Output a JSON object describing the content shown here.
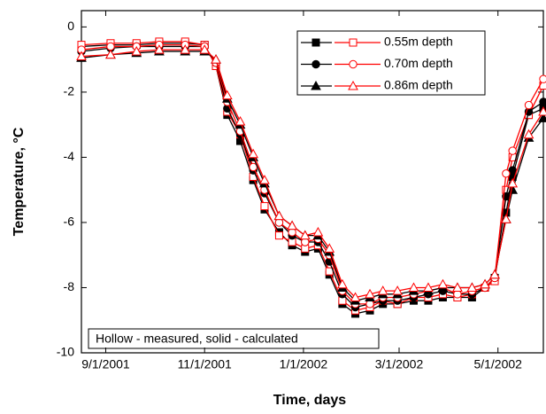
{
  "chart_data": {
    "type": "line",
    "y_label": "Temperature, °C",
    "x_label": "Time, days",
    "annotation": "Hollow - measured, solid - calculated",
    "measured_color": "#ff0000",
    "calculated_color": "#000000",
    "x": [
      "2001-08-17",
      "2001-09-04",
      "2001-09-20",
      "2001-10-04",
      "2001-10-20",
      "2001-11-01",
      "2001-11-08",
      "2001-11-15",
      "2001-11-23",
      "2001-12-01",
      "2001-12-08",
      "2001-12-17",
      "2001-12-25",
      "2002-01-02",
      "2002-01-10",
      "2002-01-17",
      "2002-01-25",
      "2002-02-02",
      "2002-02-11",
      "2002-02-19",
      "2002-02-28",
      "2002-03-10",
      "2002-03-19",
      "2002-03-28",
      "2002-04-06",
      "2002-04-15",
      "2002-04-23",
      "2002-04-29",
      "2002-05-06",
      "2002-05-10",
      "2002-05-20",
      "2002-05-29"
    ],
    "series": [
      {
        "name": "0.55m depth",
        "marker": "square",
        "values": [
          -0.55,
          -0.5,
          -0.5,
          -0.45,
          -0.45,
          -0.55,
          -1.2,
          -2.6,
          -3.3,
          -4.6,
          -5.5,
          -6.4,
          -6.6,
          -6.8,
          -6.7,
          -7.5,
          -8.4,
          -8.7,
          -8.6,
          -8.4,
          -8.5,
          -8.3,
          -8.3,
          -8.2,
          -8.3,
          -8.2,
          -8.0,
          -7.8,
          -5.0,
          -4.0,
          -2.7,
          -1.8
        ],
        "calculated": [
          -0.6,
          -0.55,
          -0.55,
          -0.5,
          -0.5,
          -0.55,
          -1.2,
          -2.7,
          -3.5,
          -4.7,
          -5.6,
          -6.3,
          -6.7,
          -6.9,
          -6.8,
          -7.6,
          -8.5,
          -8.8,
          -8.7,
          -8.5,
          -8.5,
          -8.4,
          -8.4,
          -8.3,
          -8.3,
          -8.3,
          -8.0,
          -7.7,
          -5.7,
          -4.6,
          -2.7,
          -2.5
        ]
      },
      {
        "name": "0.70m depth",
        "marker": "circle",
        "values": [
          -0.7,
          -0.6,
          -0.6,
          -0.55,
          -0.55,
          -0.6,
          -1.1,
          -2.3,
          -3.2,
          -4.3,
          -5.0,
          -6.0,
          -6.3,
          -6.6,
          -6.5,
          -7.0,
          -8.1,
          -8.5,
          -8.5,
          -8.3,
          -8.3,
          -8.2,
          -8.1,
          -8.0,
          -8.2,
          -8.1,
          -8.0,
          -7.7,
          -4.5,
          -3.8,
          -2.4,
          -1.6
        ],
        "calculated": [
          -0.75,
          -0.65,
          -0.6,
          -0.6,
          -0.6,
          -0.6,
          -1.1,
          -2.5,
          -3.3,
          -4.4,
          -5.1,
          -6.0,
          -6.4,
          -6.6,
          -6.6,
          -7.2,
          -8.2,
          -8.6,
          -8.5,
          -8.4,
          -8.4,
          -8.3,
          -8.2,
          -8.1,
          -8.2,
          -8.2,
          -8.0,
          -7.7,
          -5.2,
          -4.4,
          -2.6,
          -2.3
        ]
      },
      {
        "name": "0.86m depth",
        "marker": "triangle",
        "values": [
          -0.9,
          -0.85,
          -0.75,
          -0.7,
          -0.7,
          -0.7,
          -1.0,
          -2.1,
          -2.9,
          -3.9,
          -4.7,
          -5.8,
          -6.1,
          -6.4,
          -6.3,
          -6.8,
          -7.9,
          -8.3,
          -8.2,
          -8.1,
          -8.1,
          -8.0,
          -8.0,
          -7.9,
          -8.0,
          -8.0,
          -7.9,
          -7.6,
          -5.9,
          -4.8,
          -3.3,
          -2.6
        ],
        "calculated": [
          -0.95,
          -0.85,
          -0.8,
          -0.75,
          -0.75,
          -0.75,
          -1.0,
          -2.2,
          -3.0,
          -4.0,
          -4.8,
          -5.8,
          -6.1,
          -6.4,
          -6.4,
          -6.9,
          -8.0,
          -8.4,
          -8.3,
          -8.2,
          -8.2,
          -8.1,
          -8.1,
          -8.0,
          -8.0,
          -8.0,
          -7.9,
          -7.6,
          -5.9,
          -5.0,
          -3.4,
          -2.8
        ]
      }
    ],
    "xlim": [
      "2001-08-17",
      "2002-05-29"
    ],
    "xticks": [
      {
        "value": "2001-09-01",
        "label": "9/1/2001"
      },
      {
        "value": "2001-11-01",
        "label": "11/1/2001"
      },
      {
        "value": "2002-01-01",
        "label": "1/1/2002"
      },
      {
        "value": "2002-03-01",
        "label": "3/1/2002"
      },
      {
        "value": "2002-05-01",
        "label": "5/1/2002"
      }
    ],
    "ylim": [
      -10,
      0.5
    ],
    "yticks": [
      0,
      -2,
      -4,
      -6,
      -8,
      -10
    ]
  }
}
